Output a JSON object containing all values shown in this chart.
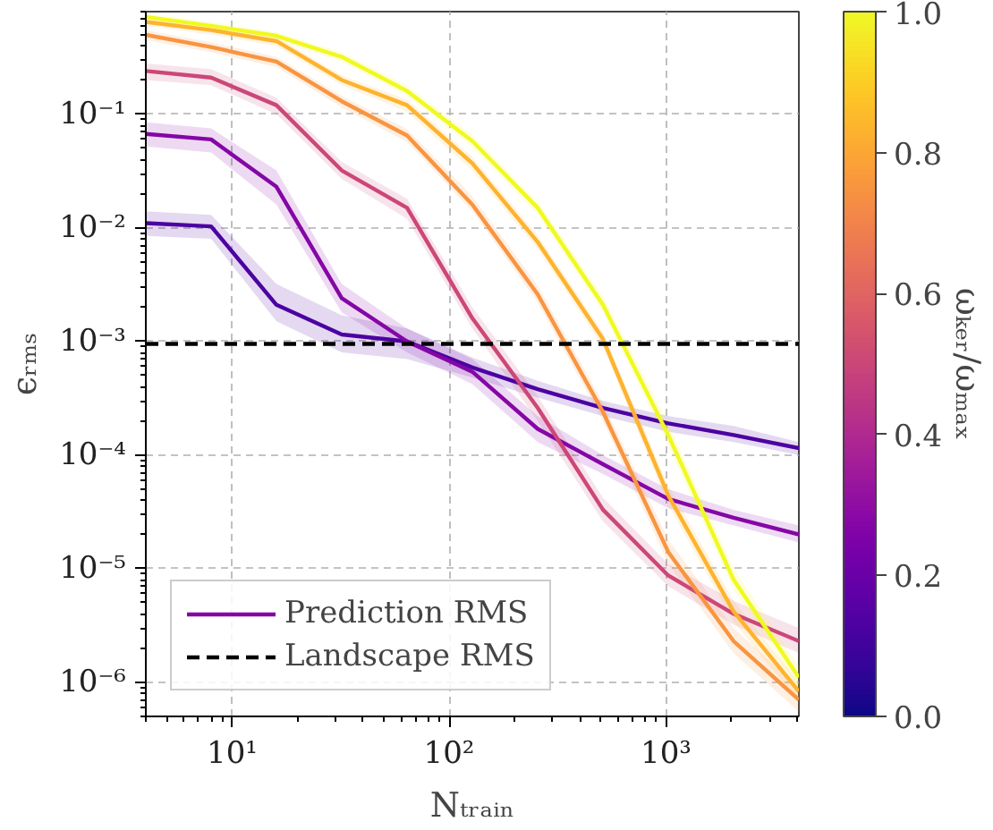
{
  "chart_data": {
    "type": "line",
    "xlabel": "Nₜᵣₐᵢₙ",
    "ylabel": "ϵᵣₘₛ",
    "clabel": "ωₖₑᵣ/ωₘₐₓ",
    "x": [
      4,
      8,
      16,
      32,
      64,
      128,
      256,
      512,
      1024,
      2048,
      4096
    ],
    "series": [
      {
        "color": "#4c02a1",
        "values": [
          0.011,
          0.0103,
          0.0021,
          0.00115,
          0.001,
          0.00059,
          0.00038,
          0.00026,
          0.00019,
          0.00015,
          0.000115
        ],
        "lower": [
          0.0085,
          0.008,
          0.0015,
          0.0008,
          0.0007,
          0.00048,
          0.00032,
          0.00022,
          0.00016,
          0.00013,
          0.0001
        ],
        "upper": [
          0.014,
          0.013,
          0.0032,
          0.0017,
          0.0013,
          0.00072,
          0.00045,
          0.0003,
          0.00022,
          0.00018,
          0.00013
        ]
      },
      {
        "name": "Prediction RMS",
        "color": "#8506a6",
        "values": [
          0.067,
          0.06,
          0.023,
          0.0024,
          0.001,
          0.00054,
          0.00017,
          8.3e-05,
          4.1e-05,
          2.8e-05,
          2e-05
        ],
        "lower": [
          0.052,
          0.046,
          0.016,
          0.0018,
          0.0008,
          0.00042,
          0.00013,
          6.8e-05,
          3.4e-05,
          2.4e-05,
          1.7e-05
        ],
        "upper": [
          0.085,
          0.075,
          0.032,
          0.0032,
          0.0013,
          0.0007,
          0.00022,
          0.0001,
          5e-05,
          3.3e-05,
          2.4e-05
        ]
      },
      {
        "color": "#cc4778",
        "values": [
          0.24,
          0.21,
          0.12,
          0.032,
          0.015,
          0.0016,
          0.00026,
          3.3e-05,
          8.7e-06,
          4e-06,
          2.3e-06
        ],
        "lower": [
          0.2,
          0.18,
          0.1,
          0.027,
          0.012,
          0.0013,
          0.0002,
          2.6e-05,
          7e-06,
          3.2e-06,
          1.8e-06
        ],
        "upper": [
          0.28,
          0.25,
          0.14,
          0.038,
          0.018,
          0.002,
          0.00033,
          4.2e-05,
          1.1e-05,
          5.2e-06,
          3e-06
        ]
      },
      {
        "color": "#f89540",
        "values": [
          0.5,
          0.39,
          0.29,
          0.13,
          0.065,
          0.016,
          0.0026,
          0.00024,
          1.4e-05,
          2.3e-06,
          7e-07
        ],
        "lower": [
          0.45,
          0.35,
          0.26,
          0.115,
          0.057,
          0.014,
          0.0022,
          0.0002,
          1.1e-05,
          1.8e-06,
          5.5e-07
        ],
        "upper": [
          0.55,
          0.43,
          0.32,
          0.145,
          0.074,
          0.019,
          0.0031,
          0.00029,
          1.8e-05,
          3e-06,
          9e-07
        ]
      },
      {
        "color": "#fdb32f",
        "values": [
          0.65,
          0.55,
          0.44,
          0.2,
          0.12,
          0.037,
          0.0075,
          0.00105,
          4.4e-05,
          4.2e-06,
          8.3e-07
        ],
        "lower": [
          0.6,
          0.5,
          0.4,
          0.18,
          0.105,
          0.032,
          0.0065,
          0.0009,
          3.6e-05,
          3.4e-06,
          6.8e-07
        ],
        "upper": [
          0.7,
          0.6,
          0.48,
          0.22,
          0.135,
          0.042,
          0.0086,
          0.0012,
          5.4e-05,
          5.2e-06,
          1e-06
        ]
      },
      {
        "color": "#f0f921",
        "values": [
          0.72,
          0.6,
          0.49,
          0.32,
          0.16,
          0.058,
          0.015,
          0.0021,
          0.00015,
          8e-06,
          1.1e-06
        ],
        "lower": [
          0.67,
          0.55,
          0.45,
          0.29,
          0.145,
          0.051,
          0.013,
          0.0018,
          0.00012,
          6.5e-06,
          9e-07
        ],
        "upper": [
          0.77,
          0.65,
          0.53,
          0.35,
          0.18,
          0.066,
          0.017,
          0.0025,
          0.00019,
          1e-05,
          1.4e-06
        ]
      }
    ],
    "ref_lines": [
      {
        "axis": "y",
        "value": 0.00095,
        "label": "Landscape RMS",
        "color": "#000000",
        "line_style": "dashed"
      }
    ],
    "xlim": [
      4,
      4096
    ],
    "ylim": [
      5e-07,
      0.8
    ],
    "xticks": [
      {
        "value": 10,
        "label": "10¹"
      },
      {
        "value": 100,
        "label": "10²"
      },
      {
        "value": 1000,
        "label": "10³"
      }
    ],
    "yticks": [
      {
        "value": 1e-06,
        "label": "10⁻⁶"
      },
      {
        "value": 1e-05,
        "label": "10⁻⁵"
      },
      {
        "value": 0.0001,
        "label": "10⁻⁴"
      },
      {
        "value": 0.001,
        "label": "10⁻³"
      },
      {
        "value": 0.01,
        "label": "10⁻²"
      },
      {
        "value": 0.1,
        "label": "10⁻¹"
      }
    ],
    "log": "xy",
    "grid": true,
    "legend": "bottom left",
    "line_style": "solid",
    "marker": "none",
    "clim": [
      0,
      1
    ],
    "cticks": [
      {
        "value": 0,
        "label": "0.0"
      },
      {
        "value": 0.2,
        "label": "0.2"
      },
      {
        "value": 0.4,
        "label": "0.4"
      },
      {
        "value": 0.6,
        "label": "0.6"
      },
      {
        "value": 0.8,
        "label": "0.8"
      },
      {
        "value": 1,
        "label": "1.0"
      }
    ]
  }
}
